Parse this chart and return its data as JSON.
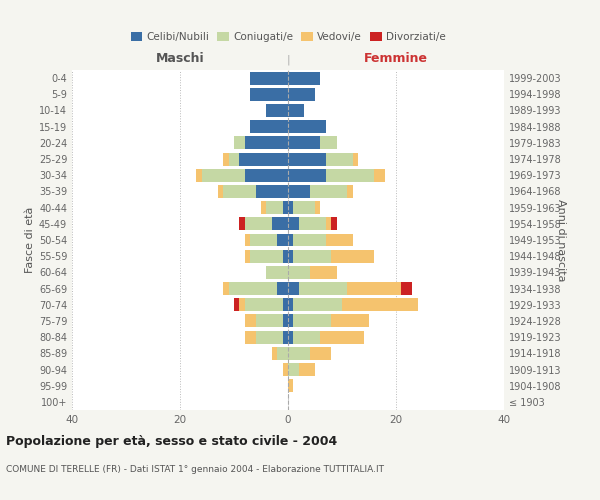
{
  "age_groups": [
    "100+",
    "95-99",
    "90-94",
    "85-89",
    "80-84",
    "75-79",
    "70-74",
    "65-69",
    "60-64",
    "55-59",
    "50-54",
    "45-49",
    "40-44",
    "35-39",
    "30-34",
    "25-29",
    "20-24",
    "15-19",
    "10-14",
    "5-9",
    "0-4"
  ],
  "birth_years": [
    "≤ 1903",
    "1904-1908",
    "1909-1913",
    "1914-1918",
    "1919-1923",
    "1924-1928",
    "1929-1933",
    "1934-1938",
    "1939-1943",
    "1944-1948",
    "1949-1953",
    "1954-1958",
    "1959-1963",
    "1964-1968",
    "1969-1973",
    "1974-1978",
    "1979-1983",
    "1984-1988",
    "1989-1993",
    "1994-1998",
    "1999-2003"
  ],
  "maschi": {
    "celibi": [
      0,
      0,
      0,
      0,
      1,
      1,
      1,
      2,
      0,
      1,
      2,
      3,
      1,
      6,
      8,
      9,
      8,
      7,
      4,
      7,
      7
    ],
    "coniugati": [
      0,
      0,
      0,
      2,
      5,
      5,
      7,
      9,
      4,
      6,
      5,
      5,
      3,
      6,
      8,
      2,
      2,
      0,
      0,
      0,
      0
    ],
    "vedovi": [
      0,
      0,
      1,
      1,
      2,
      2,
      1,
      1,
      0,
      1,
      1,
      0,
      1,
      1,
      1,
      1,
      0,
      0,
      0,
      0,
      0
    ],
    "divorziati": [
      0,
      0,
      0,
      0,
      0,
      0,
      1,
      0,
      0,
      0,
      0,
      1,
      0,
      0,
      0,
      0,
      0,
      0,
      0,
      0,
      0
    ]
  },
  "femmine": {
    "nubili": [
      0,
      0,
      0,
      0,
      1,
      1,
      1,
      2,
      0,
      1,
      1,
      2,
      1,
      4,
      7,
      7,
      6,
      7,
      3,
      5,
      6
    ],
    "coniugate": [
      0,
      0,
      2,
      4,
      5,
      7,
      9,
      9,
      4,
      7,
      6,
      5,
      4,
      7,
      9,
      5,
      3,
      0,
      0,
      0,
      0
    ],
    "vedove": [
      0,
      1,
      3,
      4,
      8,
      7,
      14,
      10,
      5,
      8,
      5,
      1,
      1,
      1,
      2,
      1,
      0,
      0,
      0,
      0,
      0
    ],
    "divorziate": [
      0,
      0,
      0,
      0,
      0,
      0,
      0,
      2,
      0,
      0,
      0,
      1,
      0,
      0,
      0,
      0,
      0,
      0,
      0,
      0,
      0
    ]
  },
  "colors": {
    "celibi": "#3a6ea5",
    "coniugati": "#c5d8a4",
    "vedovi": "#f5c36e",
    "divorziati": "#cc2222"
  },
  "xlim": 40,
  "title": "Popolazione per età, sesso e stato civile - 2004",
  "subtitle": "COMUNE DI TERELLE (FR) - Dati ISTAT 1° gennaio 2004 - Elaborazione TUTTITALIA.IT",
  "bar_height": 0.8,
  "background_color": "#f5f5f0",
  "plot_bg": "#ffffff"
}
